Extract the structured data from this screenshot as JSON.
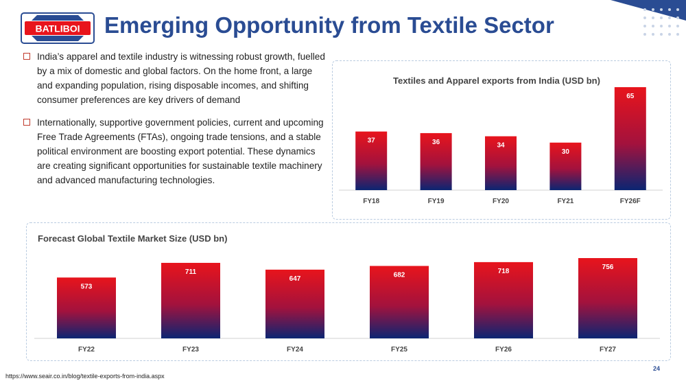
{
  "header": {
    "logo_text": "BATLIBOI",
    "title": "Emerging Opportunity from Textile Sector"
  },
  "bullets": [
    "India’s apparel and textile industry is witnessing robust growth, fuelled by a mix of domestic and global factors. On the home front, a large and expanding population, rising disposable incomes, and shifting consumer preferences are key drivers of demand",
    "Internationally, supportive government policies, current and upcoming Free Trade Agreements (FTAs), ongoing trade tensions, and a stable political environment are boosting export potential. These dynamics are creating significant opportunities for sustainable textile machinery and advanced manufacturing technologies."
  ],
  "colors": {
    "title": "#2a4c93",
    "bar_top": "#e8141c",
    "bar_bottom": "#0b2572",
    "bullet_marker": "#c0392b",
    "panel_border": "#b9cbe0"
  },
  "chart_data": [
    {
      "type": "bar",
      "title": "Textiles and Apparel exports from India (USD bn)",
      "categories": [
        "FY18",
        "FY19",
        "FY20",
        "FY21",
        "FY26F"
      ],
      "values": [
        37,
        36,
        34,
        30,
        65
      ],
      "data_labels": [
        "37",
        "36",
        "34",
        "30",
        "65"
      ],
      "ylim": [
        0,
        65
      ],
      "grid": false,
      "legend": "none"
    },
    {
      "type": "bar",
      "title": "Forecast Global Textile Market Size (USD bn)",
      "categories": [
        "FY22",
        "FY23",
        "FY24",
        "FY25",
        "FY26",
        "FY27"
      ],
      "values": [
        573,
        711,
        647,
        682,
        718,
        756
      ],
      "data_labels": [
        "573",
        "711",
        "647",
        "682",
        "718",
        "756"
      ],
      "ylim": [
        0,
        756
      ],
      "grid": false,
      "legend": "none"
    }
  ],
  "footer": {
    "source": "https://www.seair.co.in/blog/textile-exports-from-india.aspx",
    "page_number": "24"
  }
}
